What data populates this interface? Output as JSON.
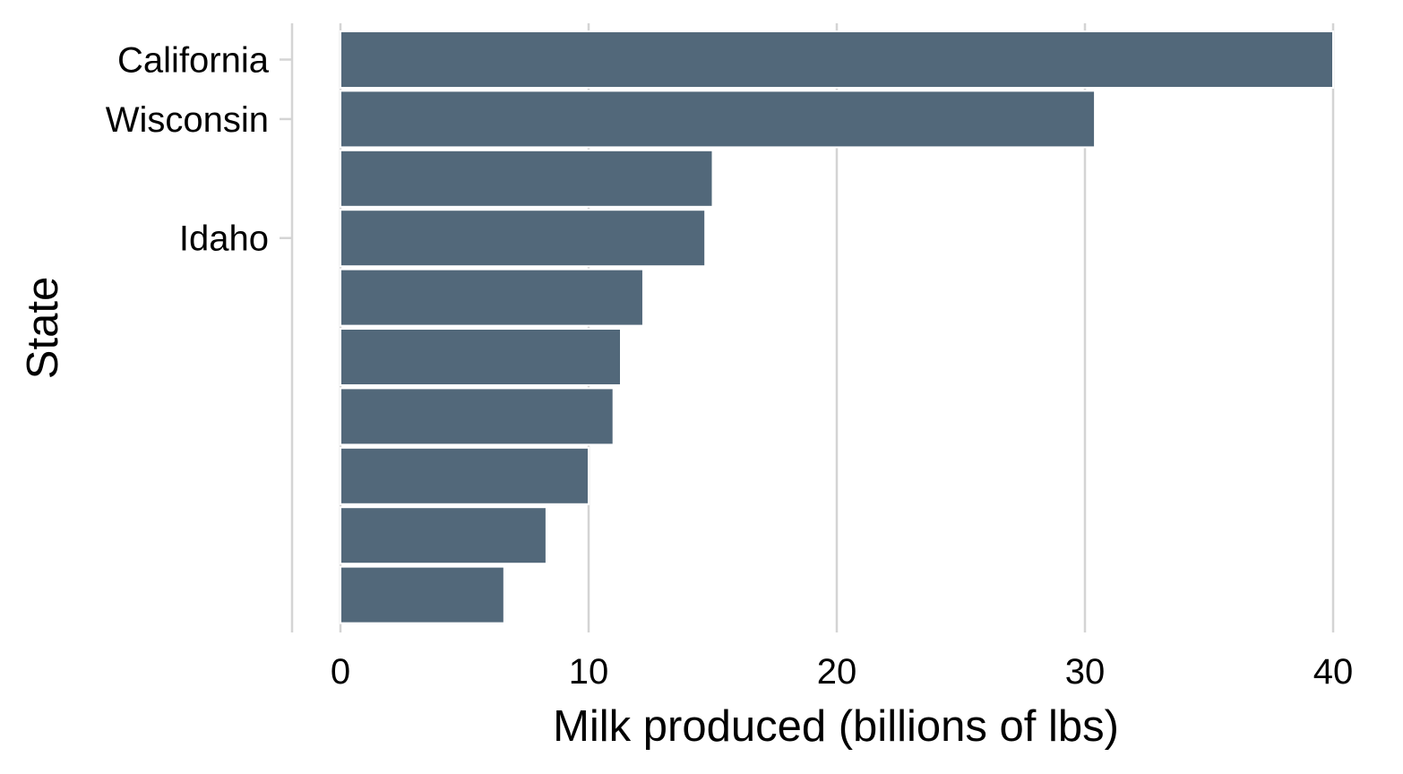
{
  "chart_data": {
    "type": "bar",
    "orientation": "horizontal",
    "xlabel": "Milk produced (billions of lbs)",
    "ylabel": "State",
    "xlim": [
      0,
      40
    ],
    "x_ticks": [
      0,
      10,
      20,
      30,
      40
    ],
    "x_tick_labels": [
      "0",
      "10",
      "20",
      "30",
      "40"
    ],
    "grid": "vertical",
    "bar_color": "#52687a",
    "categories": [
      "California",
      "Wisconsin",
      "",
      "Idaho",
      "",
      "",
      "",
      "",
      "",
      ""
    ],
    "values": [
      40.0,
      30.4,
      15.0,
      14.7,
      12.2,
      11.3,
      11.0,
      10.0,
      8.3,
      6.6
    ]
  }
}
